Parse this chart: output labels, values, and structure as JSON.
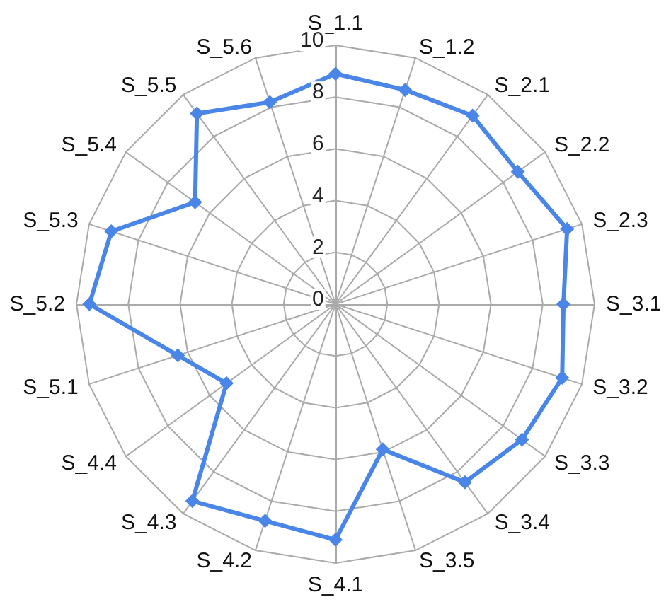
{
  "chart_data": {
    "type": "radar",
    "categories": [
      "S_1.1",
      "S_1.2",
      "S_2.1",
      "S_2.2",
      "S_2.3",
      "S_3.1",
      "S_3.2",
      "S_3.3",
      "S_3.4",
      "S_3.5",
      "S_4.1",
      "S_4.2",
      "S_4.3",
      "S_4.4",
      "S_5.1",
      "S_5.2",
      "S_5.3",
      "S_5.4",
      "S_5.5",
      "S_5.6"
    ],
    "series": [
      {
        "color": "#4a86e8",
        "values": [
          8.9,
          8.7,
          9.0,
          8.7,
          9.4,
          8.8,
          9.2,
          8.9,
          8.5,
          5.9,
          9.1,
          8.8,
          9.4,
          5.2,
          6.4,
          9.5,
          9.1,
          6.7,
          9.1,
          8.2
        ]
      }
    ],
    "ylim": [
      0,
      10
    ],
    "yticks": [
      0,
      2,
      4,
      6,
      8,
      10
    ],
    "grid": true,
    "marker": "diamond",
    "line_style": "solid"
  }
}
